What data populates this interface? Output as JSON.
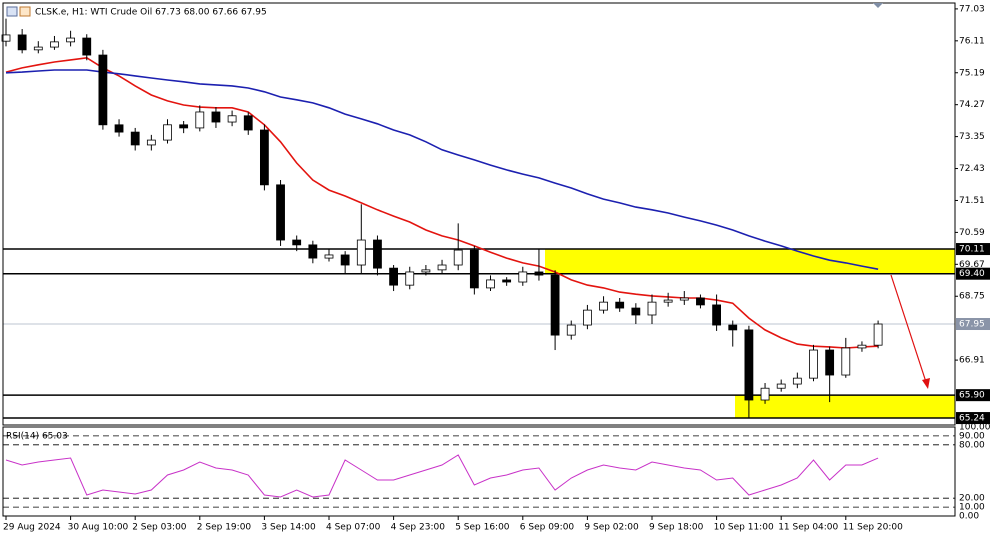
{
  "chart_data": [
    {
      "type": "candlestick",
      "title": "CLSK.e, H1:  WTI Crude Oil  67.73 68.00 67.66 67.95",
      "categories": [
        "29 Aug 2024",
        null,
        null,
        null,
        "30 Aug 10:00",
        null,
        null,
        null,
        "2 Sep 03:00",
        null,
        null,
        null,
        "2 Sep 19:00",
        null,
        null,
        null,
        "3 Sep 14:00",
        null,
        null,
        null,
        "4 Sep 07:00",
        null,
        null,
        null,
        "4 Sep 23:00",
        null,
        null,
        null,
        "5 Sep 16:00",
        null,
        null,
        null,
        "6 Sep 09:00",
        null,
        null,
        null,
        "9 Sep 02:00",
        null,
        null,
        null,
        "9 Sep 18:00",
        null,
        null,
        null,
        "10 Sep 11:00",
        null,
        null,
        null,
        "11 Sep 04:00",
        null,
        null,
        null,
        "11 Sep 20:00",
        null,
        null
      ],
      "open": [
        76.1,
        76.28,
        75.85,
        75.93,
        76.08,
        76.19,
        75.7,
        73.69,
        73.48,
        73.11,
        73.25,
        73.69,
        73.6,
        74.06,
        73.77,
        73.95,
        73.54,
        71.96,
        70.37,
        70.23,
        69.85,
        69.94,
        69.65,
        70.37,
        69.56,
        69.07,
        69.45,
        69.51,
        69.65,
        70.08,
        68.99,
        69.22,
        69.16,
        69.45,
        69.36,
        67.63,
        67.92,
        68.35,
        68.58,
        68.41,
        68.21,
        68.58,
        68.64,
        68.7,
        68.5,
        67.92,
        67.78,
        65.76,
        66.1,
        66.22,
        66.39,
        67.2,
        66.48,
        67.26,
        67.34
      ],
      "high": [
        76.75,
        76.45,
        76.1,
        76.25,
        76.4,
        76.3,
        75.85,
        73.85,
        73.6,
        73.4,
        73.85,
        73.8,
        74.25,
        74.2,
        74.1,
        74.05,
        73.7,
        72.1,
        70.5,
        70.35,
        70.1,
        70.05,
        71.4,
        70.5,
        69.65,
        69.6,
        69.65,
        69.8,
        70.85,
        70.2,
        69.35,
        69.3,
        69.6,
        70.1,
        69.5,
        68.05,
        68.5,
        68.75,
        68.7,
        68.55,
        68.8,
        68.85,
        68.9,
        68.8,
        68.8,
        68.05,
        67.9,
        66.25,
        66.35,
        66.55,
        67.35,
        67.3,
        67.55,
        67.45,
        68.05
      ],
      "low": [
        75.95,
        75.75,
        75.75,
        75.85,
        75.95,
        75.55,
        73.55,
        73.35,
        72.95,
        72.95,
        73.15,
        73.45,
        73.5,
        73.6,
        73.65,
        73.4,
        71.8,
        70.2,
        70.05,
        69.7,
        69.75,
        69.4,
        69.4,
        69.35,
        68.9,
        68.95,
        69.35,
        69.4,
        69.5,
        68.8,
        68.9,
        69.05,
        69.05,
        69.2,
        67.2,
        67.5,
        67.8,
        68.25,
        68.3,
        67.95,
        67.95,
        68.45,
        68.5,
        68.4,
        67.75,
        67.3,
        65.24,
        65.65,
        66.0,
        66.1,
        66.3,
        65.7,
        66.4,
        67.15,
        67.25
      ],
      "close": [
        76.28,
        75.85,
        75.93,
        76.08,
        76.19,
        75.7,
        73.69,
        73.48,
        73.11,
        73.25,
        73.69,
        73.6,
        74.06,
        73.77,
        73.95,
        73.54,
        71.96,
        70.37,
        70.23,
        69.85,
        69.94,
        69.65,
        70.37,
        69.56,
        69.07,
        69.45,
        69.51,
        69.65,
        70.08,
        68.99,
        69.22,
        69.16,
        69.45,
        69.36,
        67.63,
        67.92,
        68.35,
        68.58,
        68.41,
        68.21,
        68.58,
        68.64,
        68.7,
        68.5,
        67.92,
        67.78,
        65.76,
        66.1,
        66.22,
        66.39,
        67.2,
        66.48,
        67.26,
        67.34,
        67.95
      ],
      "up_color": "#ffffff",
      "down_color": "#000000",
      "overlays": [
        {
          "color": "#e3140f",
          "values": [
            75.21,
            75.33,
            75.42,
            75.5,
            75.56,
            75.62,
            75.33,
            75.1,
            74.81,
            74.55,
            74.38,
            74.26,
            74.2,
            74.18,
            74.18,
            74.06,
            73.69,
            73.2,
            72.59,
            72.1,
            71.81,
            71.64,
            71.44,
            71.24,
            71.06,
            70.89,
            70.66,
            70.49,
            70.37,
            70.2,
            70.02,
            69.85,
            69.71,
            69.62,
            69.45,
            69.22,
            69.07,
            68.99,
            68.87,
            68.81,
            68.76,
            68.73,
            68.7,
            68.7,
            68.64,
            68.55,
            68.12,
            67.78,
            67.55,
            67.37,
            67.31,
            67.29,
            67.26,
            67.29,
            67.31
          ]
        },
        {
          "color": "#1c20b0",
          "values": [
            75.19,
            75.21,
            75.24,
            75.27,
            75.27,
            75.27,
            75.21,
            75.16,
            75.1,
            75.04,
            74.98,
            74.93,
            74.87,
            74.84,
            74.81,
            74.75,
            74.64,
            74.49,
            74.41,
            74.32,
            74.18,
            74.0,
            73.86,
            73.72,
            73.54,
            73.4,
            73.2,
            72.97,
            72.82,
            72.68,
            72.53,
            72.39,
            72.27,
            72.16,
            72.01,
            71.87,
            71.7,
            71.55,
            71.44,
            71.32,
            71.24,
            71.15,
            71.03,
            70.92,
            70.8,
            70.66,
            70.49,
            70.34,
            70.2,
            70.05,
            69.91,
            69.79,
            69.71,
            69.62,
            69.53
          ]
        }
      ],
      "ylim": [
        65.04,
        77.2
      ],
      "yticks": [
        77.03,
        76.11,
        75.19,
        74.27,
        73.35,
        72.43,
        71.51,
        70.59,
        69.67,
        68.75,
        66.91
      ],
      "levels": [
        70.11,
        {
          "value": 69.4,
          "label": "69.40"
        },
        {
          "value": 65.9,
          "label": "65.90"
        },
        65.24
      ],
      "zones": [
        {
          "from": 69.4,
          "to": 70.11,
          "color": "#ffff00"
        },
        {
          "from": 65.24,
          "to": 65.9,
          "color": "#ffff00"
        }
      ],
      "last_price": 67.95
    },
    {
      "type": "line",
      "title": "RSI(14) 65.03",
      "values": [
        62.9,
        57.3,
        60.7,
        62.9,
        65.2,
        23.6,
        29.2,
        27.0,
        24.7,
        29.2,
        46.1,
        51.7,
        60.7,
        53.9,
        51.7,
        46.1,
        23.6,
        21.3,
        29.2,
        21.3,
        23.6,
        62.9,
        51.7,
        40.4,
        40.4,
        46.1,
        51.7,
        57.3,
        68.5,
        34.8,
        42.7,
        46.1,
        51.7,
        53.9,
        29.2,
        42.7,
        51.7,
        57.3,
        53.9,
        51.7,
        60.7,
        57.3,
        53.9,
        51.7,
        40.4,
        42.7,
        23.6,
        29.2,
        34.8,
        42.7,
        62.9,
        40.4,
        57.3,
        57.3,
        65.03
      ],
      "color": "#c832c8",
      "ylim": [
        0,
        100
      ],
      "yticks": [
        {
          "value": 100,
          "label": "100.00"
        },
        {
          "value": 90,
          "label": "90.00"
        },
        {
          "value": 80,
          "label": "80.00"
        },
        {
          "value": 20,
          "label": "20.00"
        },
        {
          "value": 10,
          "label": "10.00"
        },
        {
          "value": 0,
          "label": "0.00"
        }
      ]
    }
  ]
}
